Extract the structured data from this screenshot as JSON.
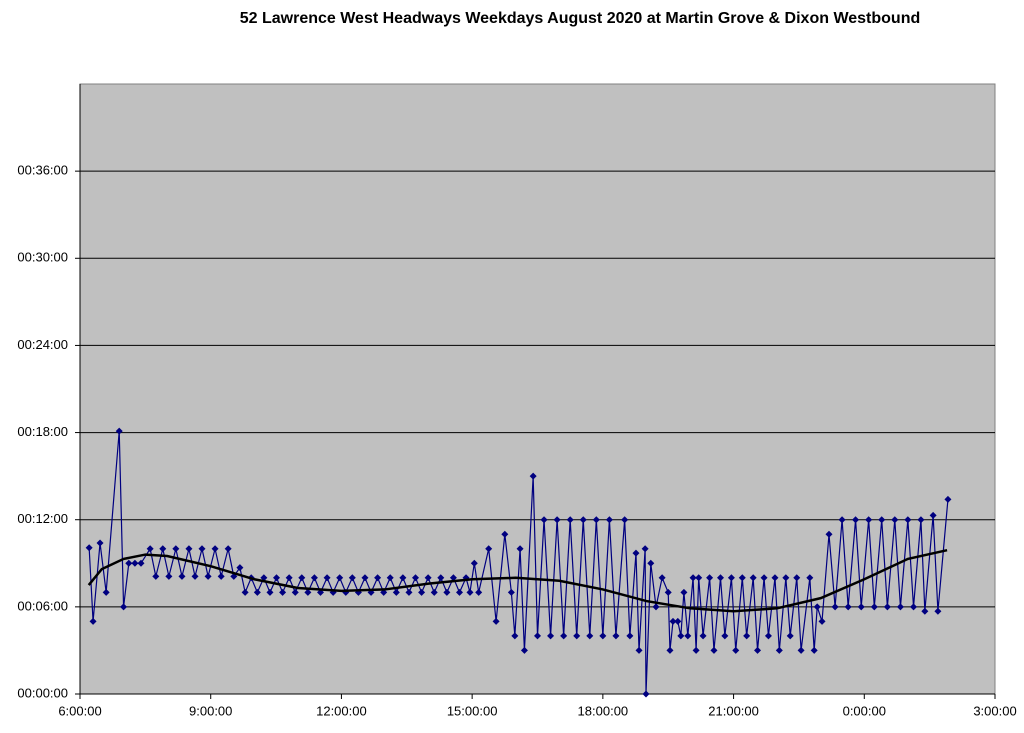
{
  "chart_data": {
    "type": "line",
    "title": "52 Lawrence West Headways Weekdays August 2020 at Martin Grove & Dixon Westbound",
    "xlim": [
      6,
      27
    ],
    "xticks": [
      {
        "value": 6,
        "label": "6:00:00"
      },
      {
        "value": 9,
        "label": "9:00:00"
      },
      {
        "value": 12,
        "label": "12:00:00"
      },
      {
        "value": 15,
        "label": "15:00:00"
      },
      {
        "value": 18,
        "label": "18:00:00"
      },
      {
        "value": 21,
        "label": "21:00:00"
      },
      {
        "value": 24,
        "label": "0:00:00"
      },
      {
        "value": 27,
        "label": "3:00:00"
      }
    ],
    "ylim": [
      0,
      42
    ],
    "yticks": [
      {
        "value": 0,
        "label": "00:00:00"
      },
      {
        "value": 6,
        "label": "00:06:00"
      },
      {
        "value": 12,
        "label": "00:12:00"
      },
      {
        "value": 18,
        "label": "00:18:00"
      },
      {
        "value": 24,
        "label": "00:24:00"
      },
      {
        "value": 30,
        "label": "00:30:00"
      },
      {
        "value": 36,
        "label": "00:36:00"
      }
    ],
    "grid": true,
    "plot_background": "#c0c0c0",
    "series": [
      {
        "color": "#000080",
        "marker": "diamond",
        "x": [
          6.21,
          6.3,
          6.46,
          6.6,
          6.9,
          7.0,
          7.12,
          7.26,
          7.4,
          7.61,
          7.74,
          7.9,
          8.04,
          8.2,
          8.34,
          8.5,
          8.64,
          8.8,
          8.94,
          9.1,
          9.24,
          9.4,
          9.53,
          9.67,
          9.79,
          9.93,
          10.07,
          10.22,
          10.36,
          10.51,
          10.65,
          10.8,
          10.94,
          11.09,
          11.23,
          11.38,
          11.52,
          11.67,
          11.81,
          11.96,
          12.1,
          12.25,
          12.39,
          12.54,
          12.68,
          12.83,
          12.97,
          13.12,
          13.26,
          13.41,
          13.55,
          13.7,
          13.84,
          13.99,
          14.13,
          14.28,
          14.42,
          14.57,
          14.71,
          14.86,
          14.95,
          15.05,
          15.15,
          15.38,
          15.55,
          15.75,
          15.9,
          15.98,
          16.1,
          16.2,
          16.4,
          16.5,
          16.65,
          16.8,
          16.95,
          17.1,
          17.25,
          17.4,
          17.55,
          17.7,
          17.85,
          18.0,
          18.15,
          18.3,
          18.5,
          18.62,
          18.76,
          18.83,
          18.97,
          18.99,
          19.1,
          19.22,
          19.36,
          19.5,
          19.54,
          19.61,
          19.72,
          19.79,
          19.86,
          19.95,
          20.07,
          20.14,
          20.2,
          20.3,
          20.45,
          20.55,
          20.7,
          20.8,
          20.95,
          21.05,
          21.2,
          21.3,
          21.45,
          21.55,
          21.7,
          21.8,
          21.95,
          22.05,
          22.2,
          22.3,
          22.45,
          22.55,
          22.75,
          22.85,
          22.92,
          23.03,
          23.19,
          23.33,
          23.49,
          23.63,
          23.8,
          23.93,
          24.1,
          24.23,
          24.4,
          24.53,
          24.7,
          24.83,
          25.0,
          25.13,
          25.3,
          25.39,
          25.58,
          25.69,
          25.92
        ],
        "values": [
          10.07,
          5.0,
          10.4,
          7.0,
          18.1,
          6.0,
          9,
          9,
          9,
          10,
          8.1,
          10,
          8.1,
          10,
          8.1,
          10,
          8.1,
          10,
          8.1,
          10,
          8.1,
          10,
          8.1,
          8.7,
          7.0,
          8,
          7,
          8,
          7,
          8,
          7,
          8,
          7,
          8,
          7,
          8,
          7,
          8,
          7,
          8,
          7,
          8,
          7,
          8,
          7,
          8,
          7,
          8,
          7,
          8,
          7,
          8,
          7,
          8,
          7,
          8,
          7,
          8,
          7,
          8,
          7,
          9,
          7,
          10,
          5,
          11,
          7,
          4,
          10,
          3,
          15,
          4,
          12,
          4,
          12,
          4,
          12,
          4,
          12,
          4,
          12,
          4,
          12,
          4,
          12,
          4,
          9.7,
          3,
          10,
          0,
          9,
          6,
          8,
          7,
          3,
          5,
          5,
          4,
          7,
          4,
          8,
          3,
          8,
          4,
          8,
          3,
          8,
          4,
          8,
          3,
          8,
          4,
          8,
          3,
          8,
          4,
          8,
          3,
          8,
          4,
          8,
          3,
          8,
          3,
          6,
          5,
          11,
          6,
          12,
          6,
          12,
          6,
          12,
          6,
          12,
          6,
          12,
          6,
          12,
          6,
          12,
          5.7,
          12.3,
          5.7,
          13.4
        ]
      },
      {
        "color": "#000000",
        "marker": "none",
        "x": [
          6.2,
          6.5,
          7,
          7.5,
          8,
          9,
          10,
          11,
          12,
          13,
          14,
          15,
          16,
          17,
          18,
          19,
          20,
          21,
          22,
          23,
          24,
          25,
          25.9
        ],
        "values": [
          7.5,
          8.6,
          9.3,
          9.6,
          9.5,
          8.8,
          7.9,
          7.3,
          7.1,
          7.2,
          7.6,
          7.9,
          8.0,
          7.8,
          7.2,
          6.4,
          5.9,
          5.7,
          5.9,
          6.6,
          7.9,
          9.3,
          9.9
        ]
      }
    ]
  }
}
